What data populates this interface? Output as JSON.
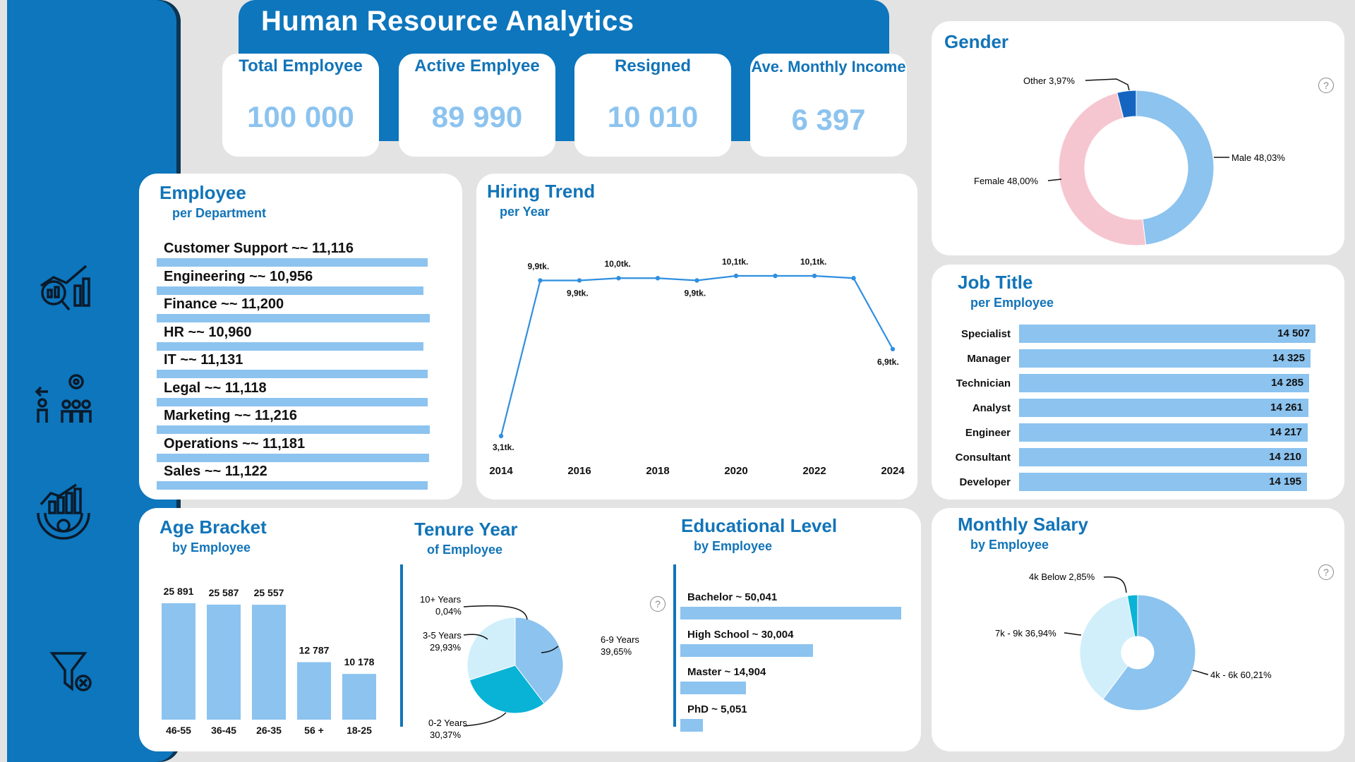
{
  "header": {
    "title": "Human Resource Analytics"
  },
  "kpis": [
    {
      "label": "Total Employee",
      "value": "100 000"
    },
    {
      "label": "Active Emplyee",
      "value": "89 990"
    },
    {
      "label": "Resigned",
      "value": "10 010"
    },
    {
      "label": "Ave. Monthly Income",
      "value": "6 397"
    }
  ],
  "sidebar_icons": [
    "analytics-icon",
    "employee-settings-icon",
    "growth-gear-icon",
    "clear-filter-icon"
  ],
  "employee": {
    "title": "Employee",
    "subtitle": "per Department",
    "rows": [
      {
        "label": "Customer Support ~~ 11,116",
        "value": 11116
      },
      {
        "label": "Engineering ~~ 10,956",
        "value": 10956
      },
      {
        "label": "Finance ~~ 11,200",
        "value": 11200
      },
      {
        "label": "HR ~~ 10,960",
        "value": 10960
      },
      {
        "label": "IT ~~ 11,131",
        "value": 11131
      },
      {
        "label": "Legal ~~ 11,118",
        "value": 11118
      },
      {
        "label": "Marketing ~~ 11,216",
        "value": 11216
      },
      {
        "label": "Operations ~~ 11,181",
        "value": 11181
      },
      {
        "label": "Sales ~~ 11,122",
        "value": 11122
      }
    ]
  },
  "hiring": {
    "title": "Hiring Trend",
    "subtitle": "per Year",
    "x_ticks": [
      "2014",
      "2016",
      "2018",
      "2020",
      "2022",
      "2024"
    ],
    "labels": [
      "3,1tk.",
      "9,9tk.",
      "9,9tk.",
      "10,0tk.",
      "9,9tk.",
      "10,1tk.",
      "10,1tk.",
      "6,9tk."
    ]
  },
  "gender": {
    "title": "Gender",
    "labels": [
      "Other 3,97%",
      "Male 48,03%",
      "Female 48,00%"
    ]
  },
  "job": {
    "title": "Job Title",
    "subtitle": "per Employee",
    "rows": [
      {
        "label": "Specialist",
        "value": "14 507"
      },
      {
        "label": "Manager",
        "value": "14 325"
      },
      {
        "label": "Technician",
        "value": "14 285"
      },
      {
        "label": "Analyst",
        "value": "14 261"
      },
      {
        "label": "Engineer",
        "value": "14 217"
      },
      {
        "label": "Consultant",
        "value": "14 210"
      },
      {
        "label": "Developer",
        "value": "14 195"
      }
    ]
  },
  "age": {
    "title": "Age Bracket",
    "subtitle": "by Employee",
    "bars": [
      {
        "label": "46-55",
        "value": "25 891"
      },
      {
        "label": "36-45",
        "value": "25 587"
      },
      {
        "label": "26-35",
        "value": "25 557"
      },
      {
        "label": "56 +",
        "value": "12 787"
      },
      {
        "label": "18-25",
        "value": "10 178"
      }
    ]
  },
  "tenure": {
    "title": "Tenure Year",
    "subtitle": "of Employee",
    "labels": [
      {
        "l1": "10+ Years",
        "l2": "0,04%"
      },
      {
        "l1": "3-5 Years",
        "l2": "29,93%"
      },
      {
        "l1": "6-9 Years",
        "l2": "39,65%"
      },
      {
        "l1": "0-2 Years",
        "l2": "30,37%"
      }
    ]
  },
  "education": {
    "title": "Educational Level",
    "subtitle": "by Employee",
    "rows": [
      {
        "label": "Bachelor ~ 50,041",
        "value": 50041
      },
      {
        "label": "High School ~ 30,004",
        "value": 30004
      },
      {
        "label": "Master ~ 14,904",
        "value": 14904
      },
      {
        "label": "PhD ~ 5,051",
        "value": 5051
      }
    ]
  },
  "salary": {
    "title": "Monthly Salary",
    "subtitle": "by Employee",
    "labels": [
      "4k Below 2,85%",
      "7k - 9k 36,94%",
      "4k - 6k 60,21%"
    ]
  },
  "help": "?",
  "chart_data": [
    {
      "type": "line",
      "title": "Hiring Trend",
      "x": [
        2014,
        2015,
        2016,
        2017,
        2018,
        2019,
        2020,
        2021,
        2022,
        2023,
        2024
      ],
      "values": [
        3.1,
        9.9,
        9.9,
        10.0,
        10.0,
        9.9,
        10.1,
        10.1,
        10.1,
        10.0,
        6.9
      ]
    },
    {
      "type": "pie",
      "title": "Gender",
      "categories": [
        "Other",
        "Male",
        "Female"
      ],
      "values": [
        3.97,
        48.03,
        48.0
      ],
      "colors": [
        "#1565c0",
        "#8cc3ef",
        "#f6c6d0"
      ]
    },
    {
      "type": "bar",
      "title": "Job Title",
      "categories": [
        "Specialist",
        "Manager",
        "Technician",
        "Analyst",
        "Engineer",
        "Consultant",
        "Developer"
      ],
      "values": [
        14507,
        14325,
        14285,
        14261,
        14217,
        14210,
        14195
      ]
    },
    {
      "type": "bar",
      "title": "Age Bracket",
      "categories": [
        "46-55",
        "36-45",
        "26-35",
        "56 +",
        "18-25"
      ],
      "values": [
        25891,
        25587,
        25557,
        12787,
        10178
      ]
    },
    {
      "type": "pie",
      "title": "Tenure Year",
      "categories": [
        "10+ Years",
        "3-5 Years",
        "6-9 Years",
        "0-2 Years"
      ],
      "values": [
        0.04,
        29.93,
        39.65,
        30.37
      ],
      "colors": [
        "#0d76bd",
        "#d0effa",
        "#8cc3ef",
        "#09b3d6"
      ]
    },
    {
      "type": "bar",
      "title": "Educational Level",
      "categories": [
        "Bachelor",
        "High School",
        "Master",
        "PhD"
      ],
      "values": [
        50041,
        30004,
        14904,
        5051
      ]
    },
    {
      "type": "pie",
      "title": "Monthly Salary",
      "categories": [
        "4k Below",
        "7k - 9k",
        "4k - 6k"
      ],
      "values": [
        2.85,
        36.94,
        60.21
      ],
      "colors": [
        "#09b3d6",
        "#d0effa",
        "#8cc3ef"
      ]
    },
    {
      "type": "bar",
      "title": "Employee",
      "categories": [
        "Customer Support",
        "Engineering",
        "Finance",
        "HR",
        "IT",
        "Legal",
        "Marketing",
        "Operations",
        "Sales"
      ],
      "values": [
        11116,
        10956,
        11200,
        10960,
        11131,
        11118,
        11216,
        11181,
        11122
      ]
    }
  ]
}
